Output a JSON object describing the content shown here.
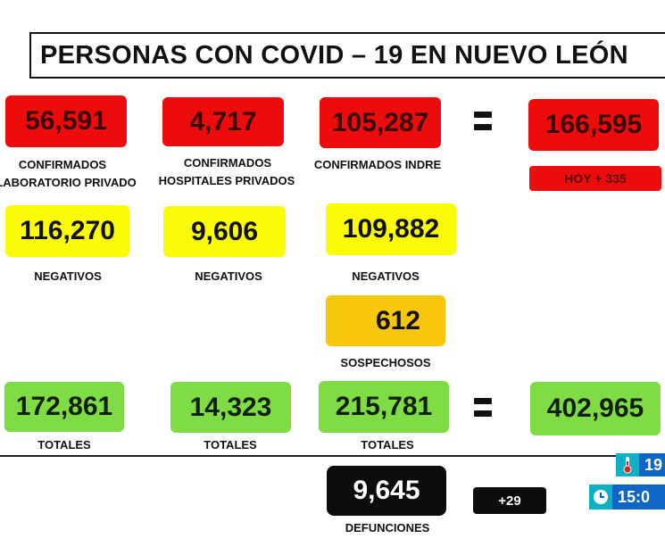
{
  "title": "PERSONAS CON COVID – 19 EN NUEVO LEÓN",
  "confirmados": {
    "lab_privado": "56,591",
    "hosp_privados": "4,717",
    "indre": "105,287",
    "total": "166,595",
    "hoy": "HOY + 335",
    "labels": {
      "lab_privado_1": "CONFIRMADOS",
      "lab_privado_2": "LABORATORIO PRIVADO",
      "hosp_privados_1": "CONFIRMADOS",
      "hosp_privados_2": "HOSPITALES PRIVADOS",
      "indre": "CONFIRMADOS INDRE"
    }
  },
  "negativos": {
    "lab_privado": "116,270",
    "hosp_privados": "9,606",
    "indre": "109,882",
    "label": "NEGATIVOS"
  },
  "sospechosos": {
    "value": "612",
    "label": "SOSPECHOSOS"
  },
  "totales": {
    "lab_privado": "172,861",
    "hosp_privados": "14,323",
    "indre": "215,781",
    "total": "402,965",
    "label": "TOTALES"
  },
  "defunciones": {
    "value": "9,645",
    "label": "DEFUNCIONES",
    "delta": "+29"
  },
  "overlay": {
    "temperature": "19",
    "time": "15:0",
    "thermometer_icon": "thermometer-icon",
    "clock_icon": "clock-icon"
  },
  "colors": {
    "confirmed": "#ec0c0c",
    "negative": "#fbfb08",
    "suspected": "#f8c60a",
    "totals": "#7fdc45",
    "deaths": "#0c0c0c"
  }
}
